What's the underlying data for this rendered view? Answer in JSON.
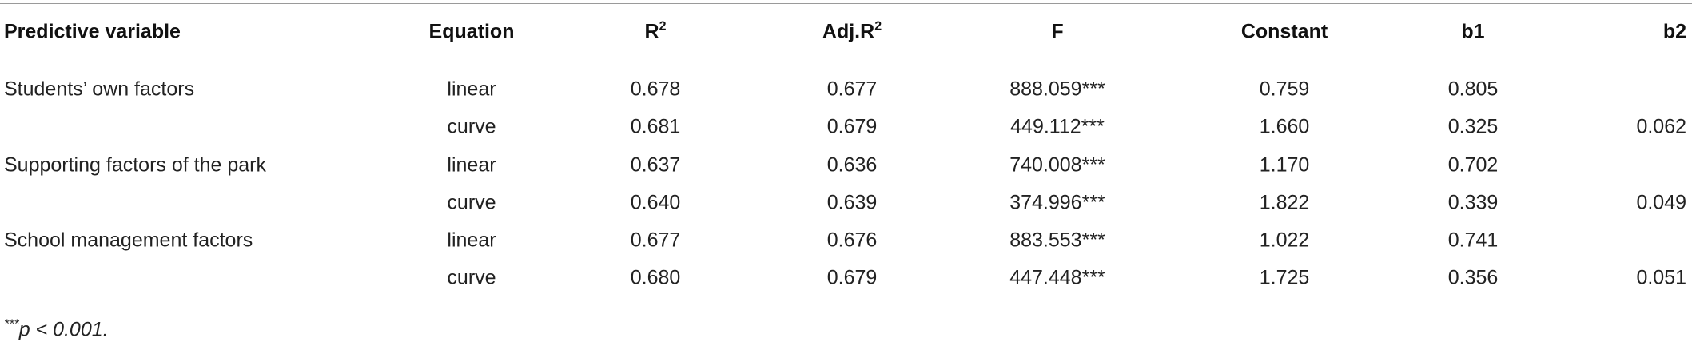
{
  "table": {
    "header": [
      {
        "text": "Predictive variable"
      },
      {
        "text": "Equation"
      },
      {
        "text": "R",
        "sup": "2"
      },
      {
        "text": "Adj.R",
        "sup": "2"
      },
      {
        "text": "F"
      },
      {
        "text": "Constant"
      },
      {
        "text": "b1"
      },
      {
        "text": "b2"
      }
    ],
    "rows": [
      [
        "Students’ own factors",
        "linear",
        "0.678",
        "0.677",
        "888.059***",
        "0.759",
        "0.805",
        null
      ],
      [
        null,
        "curve",
        "0.681",
        "0.679",
        "449.112***",
        "1.660",
        "0.325",
        "0.062"
      ],
      [
        "Supporting factors of the park",
        "linear",
        "0.637",
        "0.636",
        "740.008***",
        "1.170",
        "0.702",
        null
      ],
      [
        null,
        "curve",
        "0.640",
        "0.639",
        "374.996***",
        "1.822",
        "0.339",
        "0.049"
      ],
      [
        "School management factors",
        "linear",
        "0.677",
        "0.676",
        "883.553***",
        "1.022",
        "0.741",
        null
      ],
      [
        null,
        "curve",
        "0.680",
        "0.679",
        "447.448***",
        "1.725",
        "0.356",
        "0.051"
      ]
    ],
    "footnote": {
      "sup": "***",
      "text": "p < 0.001."
    }
  }
}
